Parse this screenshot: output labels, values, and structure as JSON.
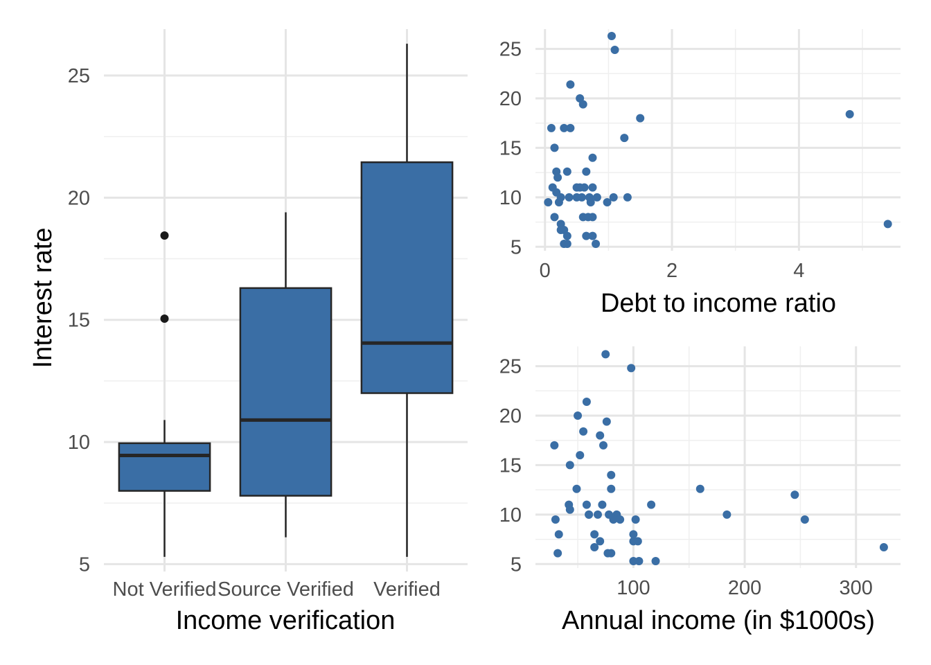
{
  "colors": {
    "fill": "#3a6ea5",
    "point": "#3a6ea5",
    "outline": "#262626",
    "outlier": "#1a1a1a"
  },
  "chart_data": [
    {
      "type": "box",
      "xlabel": "Income verification",
      "ylabel": "Interest rate",
      "categories": [
        "Not Verified",
        "Source Verified",
        "Verified"
      ],
      "ylim": [
        4.7,
        26.9
      ],
      "yticks": [
        5,
        10,
        15,
        20,
        25
      ],
      "boxes": [
        {
          "category": "Not Verified",
          "min": 5.3,
          "q1": 8.0,
          "median": 9.45,
          "q3": 9.95,
          "max": 10.9,
          "outliers": [
            18.45,
            15.05
          ]
        },
        {
          "category": "Source Verified",
          "min": 6.1,
          "q1": 7.8,
          "median": 10.9,
          "q3": 16.3,
          "max": 19.4,
          "outliers": []
        },
        {
          "category": "Verified",
          "min": 5.3,
          "q1": 12.0,
          "median": 14.05,
          "q3": 21.45,
          "max": 26.3,
          "outliers": []
        }
      ]
    },
    {
      "type": "scatter",
      "xlabel": "Debt to income ratio",
      "ylabel": "",
      "xlim": [
        -0.15,
        5.6
      ],
      "ylim": [
        4.6,
        27.0
      ],
      "xticks": [
        0,
        2,
        4
      ],
      "yticks": [
        5,
        10,
        15,
        20,
        25
      ],
      "x": [
        1.05,
        1.1,
        0.4,
        0.55,
        0.6,
        1.5,
        4.8,
        0.1,
        0.3,
        0.4,
        1.25,
        0.15,
        0.75,
        0.18,
        0.35,
        0.65,
        0.2,
        0.12,
        0.18,
        0.5,
        0.55,
        0.62,
        0.75,
        0.25,
        0.38,
        0.5,
        0.58,
        0.7,
        0.82,
        0.98,
        1.08,
        1.3,
        0.05,
        0.22,
        0.72,
        0.15,
        0.6,
        0.68,
        0.75,
        0.25,
        0.3,
        0.25,
        0.35,
        0.65,
        0.75,
        0.3,
        0.35,
        0.8,
        5.4
      ],
      "y": [
        26.3,
        24.9,
        21.4,
        20.0,
        19.4,
        18.0,
        18.4,
        17.0,
        17.0,
        17.0,
        16.0,
        15.0,
        14.0,
        12.6,
        12.6,
        12.6,
        12.0,
        11.0,
        10.5,
        11.0,
        11.0,
        11.0,
        11.0,
        10.0,
        10.0,
        10.0,
        10.0,
        10.0,
        10.0,
        9.5,
        10.0,
        10.0,
        9.5,
        9.5,
        9.5,
        8.0,
        8.0,
        8.0,
        8.0,
        7.3,
        6.7,
        6.7,
        6.1,
        6.1,
        6.1,
        5.3,
        5.3,
        5.3,
        7.3
      ]
    },
    {
      "type": "scatter",
      "xlabel": "Annual income (in $1000s)",
      "ylabel": "",
      "xlim": [
        12,
        340
      ],
      "ylim": [
        4.6,
        27.0
      ],
      "xticks": [
        100,
        200,
        300
      ],
      "yticks": [
        5,
        10,
        15,
        20,
        25
      ],
      "x": [
        75,
        98,
        58,
        50,
        76,
        55,
        70,
        29,
        73,
        43,
        52,
        80,
        160,
        245,
        49,
        80,
        42,
        58,
        72,
        116,
        43,
        60,
        68,
        78,
        184,
        85,
        60,
        88,
        82,
        30,
        102,
        254,
        33,
        100,
        65,
        100,
        104,
        70,
        65,
        325,
        32,
        77,
        80,
        100,
        105,
        120
      ],
      "y": [
        26.2,
        24.8,
        21.4,
        20.0,
        19.4,
        18.4,
        18.0,
        17.0,
        17.0,
        15.0,
        16.0,
        14.0,
        12.6,
        12.0,
        12.6,
        12.6,
        11.0,
        11.0,
        11.0,
        11.0,
        10.5,
        10.0,
        10.0,
        10.0,
        10.0,
        10.0,
        10.0,
        9.5,
        9.5,
        9.5,
        9.5,
        9.5,
        8.0,
        8.0,
        8.0,
        7.3,
        7.3,
        7.3,
        6.7,
        6.7,
        6.1,
        6.1,
        6.1,
        5.3,
        5.3,
        5.3
      ]
    }
  ]
}
